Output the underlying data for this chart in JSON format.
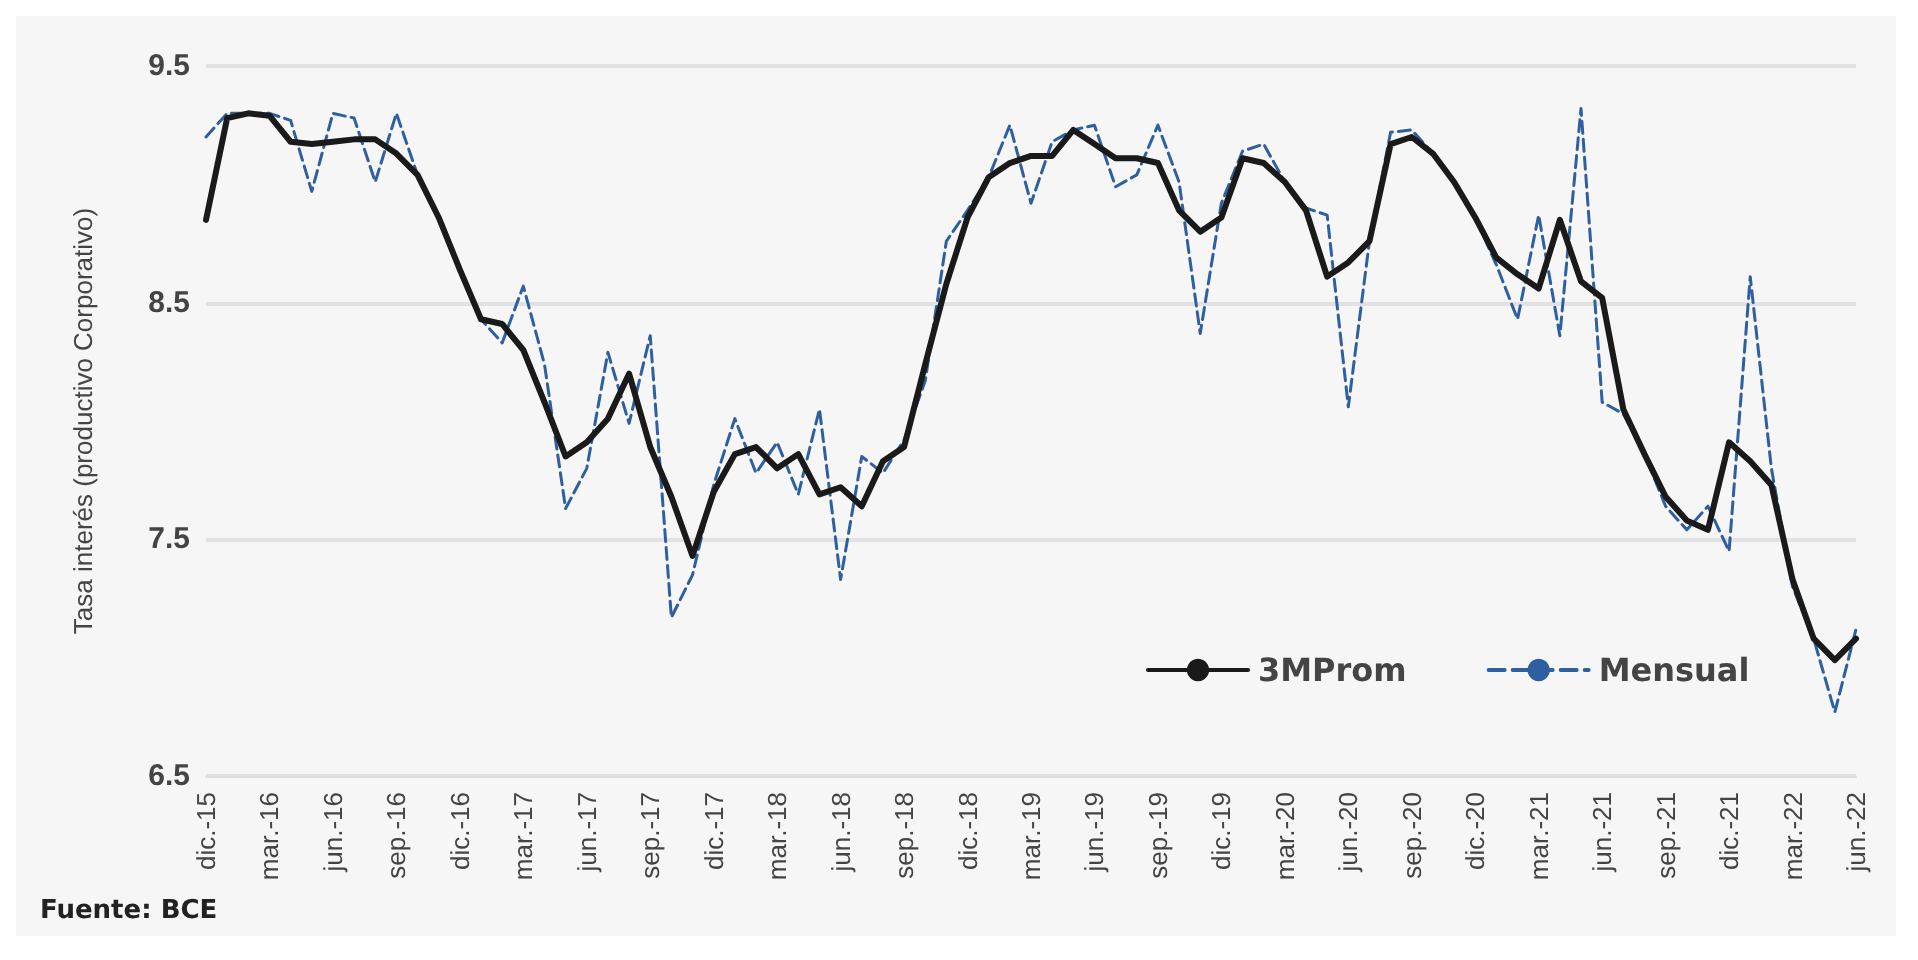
{
  "chart_data": {
    "type": "line",
    "ylabel": "Tasa interés (productivo Corporativo)",
    "annotations": [
      "Fuente: BCE"
    ],
    "categories": [
      "dic.-15",
      null,
      null,
      "mar.-16",
      null,
      null,
      "jun.-16",
      null,
      null,
      "sep.-16",
      null,
      null,
      "dic.-16",
      null,
      null,
      "mar.-17",
      null,
      null,
      "jun.-17",
      null,
      null,
      "sep.-17",
      null,
      null,
      "dic.-17",
      null,
      null,
      "mar.-18",
      null,
      null,
      "jun.-18",
      null,
      null,
      "sep.-18",
      null,
      null,
      "dic.-18",
      null,
      null,
      "mar.-19",
      null,
      null,
      "jun.-19",
      null,
      null,
      "sep.-19",
      null,
      null,
      "dic.-19",
      null,
      null,
      "mar.-20",
      null,
      null,
      "jun.-20",
      null,
      null,
      "sep.-20",
      null,
      null,
      "dic.-20",
      null,
      null,
      "mar.-21",
      null,
      null,
      "jun.-21",
      null,
      null,
      "sep.-21",
      null,
      null,
      "dic.-21",
      null,
      null,
      "mar.-22",
      null,
      null,
      "jun.-22"
    ],
    "series": [
      {
        "name": "3MProm",
        "color": "#1a1a1a",
        "line_style": "solid",
        "values": [
          8.85,
          9.28,
          9.3,
          9.29,
          9.18,
          9.17,
          9.18,
          9.19,
          9.19,
          9.13,
          9.04,
          8.86,
          8.64,
          8.43,
          8.41,
          8.3,
          8.08,
          7.85,
          7.91,
          8.01,
          8.2,
          7.89,
          7.68,
          7.43,
          7.7,
          7.86,
          7.89,
          7.8,
          7.86,
          7.69,
          7.72,
          7.64,
          7.83,
          7.89,
          8.24,
          8.58,
          8.86,
          9.03,
          9.09,
          9.12,
          9.12,
          9.23,
          9.17,
          9.11,
          9.11,
          9.09,
          8.89,
          8.8,
          8.86,
          9.11,
          9.09,
          9.01,
          8.89,
          8.61,
          8.67,
          8.76,
          9.17,
          9.2,
          9.13,
          9.01,
          8.86,
          8.69,
          8.62,
          8.56,
          8.85,
          8.59,
          8.52,
          8.05,
          7.86,
          7.68,
          7.58,
          7.54,
          7.91,
          7.83,
          7.73,
          7.33,
          7.08,
          6.99,
          7.08
        ]
      },
      {
        "name": "Mensual",
        "color": "#2e5fa0",
        "line_style": "dashed",
        "values": [
          9.2,
          9.3,
          9.3,
          9.3,
          9.27,
          8.97,
          9.3,
          9.28,
          9.01,
          9.3,
          9.04,
          8.86,
          8.65,
          8.43,
          8.33,
          8.57,
          8.24,
          7.63,
          7.8,
          8.29,
          7.99,
          8.36,
          7.17,
          7.35,
          7.73,
          8.01,
          7.78,
          7.91,
          7.69,
          8.05,
          7.33,
          7.85,
          7.78,
          7.92,
          8.17,
          8.76,
          8.89,
          9.03,
          9.25,
          8.92,
          9.18,
          9.23,
          9.25,
          8.99,
          9.04,
          9.25,
          9.01,
          8.37,
          8.92,
          9.14,
          9.17,
          9.01,
          8.9,
          8.87,
          8.06,
          8.76,
          9.22,
          9.23,
          9.13,
          9.01,
          8.86,
          8.66,
          8.43,
          8.87,
          8.36,
          9.32,
          8.08,
          8.03,
          7.86,
          7.64,
          7.54,
          7.64,
          7.45,
          8.61,
          7.8,
          7.3,
          7.08,
          6.77,
          7.12
        ]
      }
    ],
    "ylim": [
      6.5,
      9.5
    ],
    "yticks": [
      6.5,
      7.5,
      8.5,
      9.5
    ],
    "grid": "y",
    "legend": "bottom",
    "marker": "none"
  }
}
